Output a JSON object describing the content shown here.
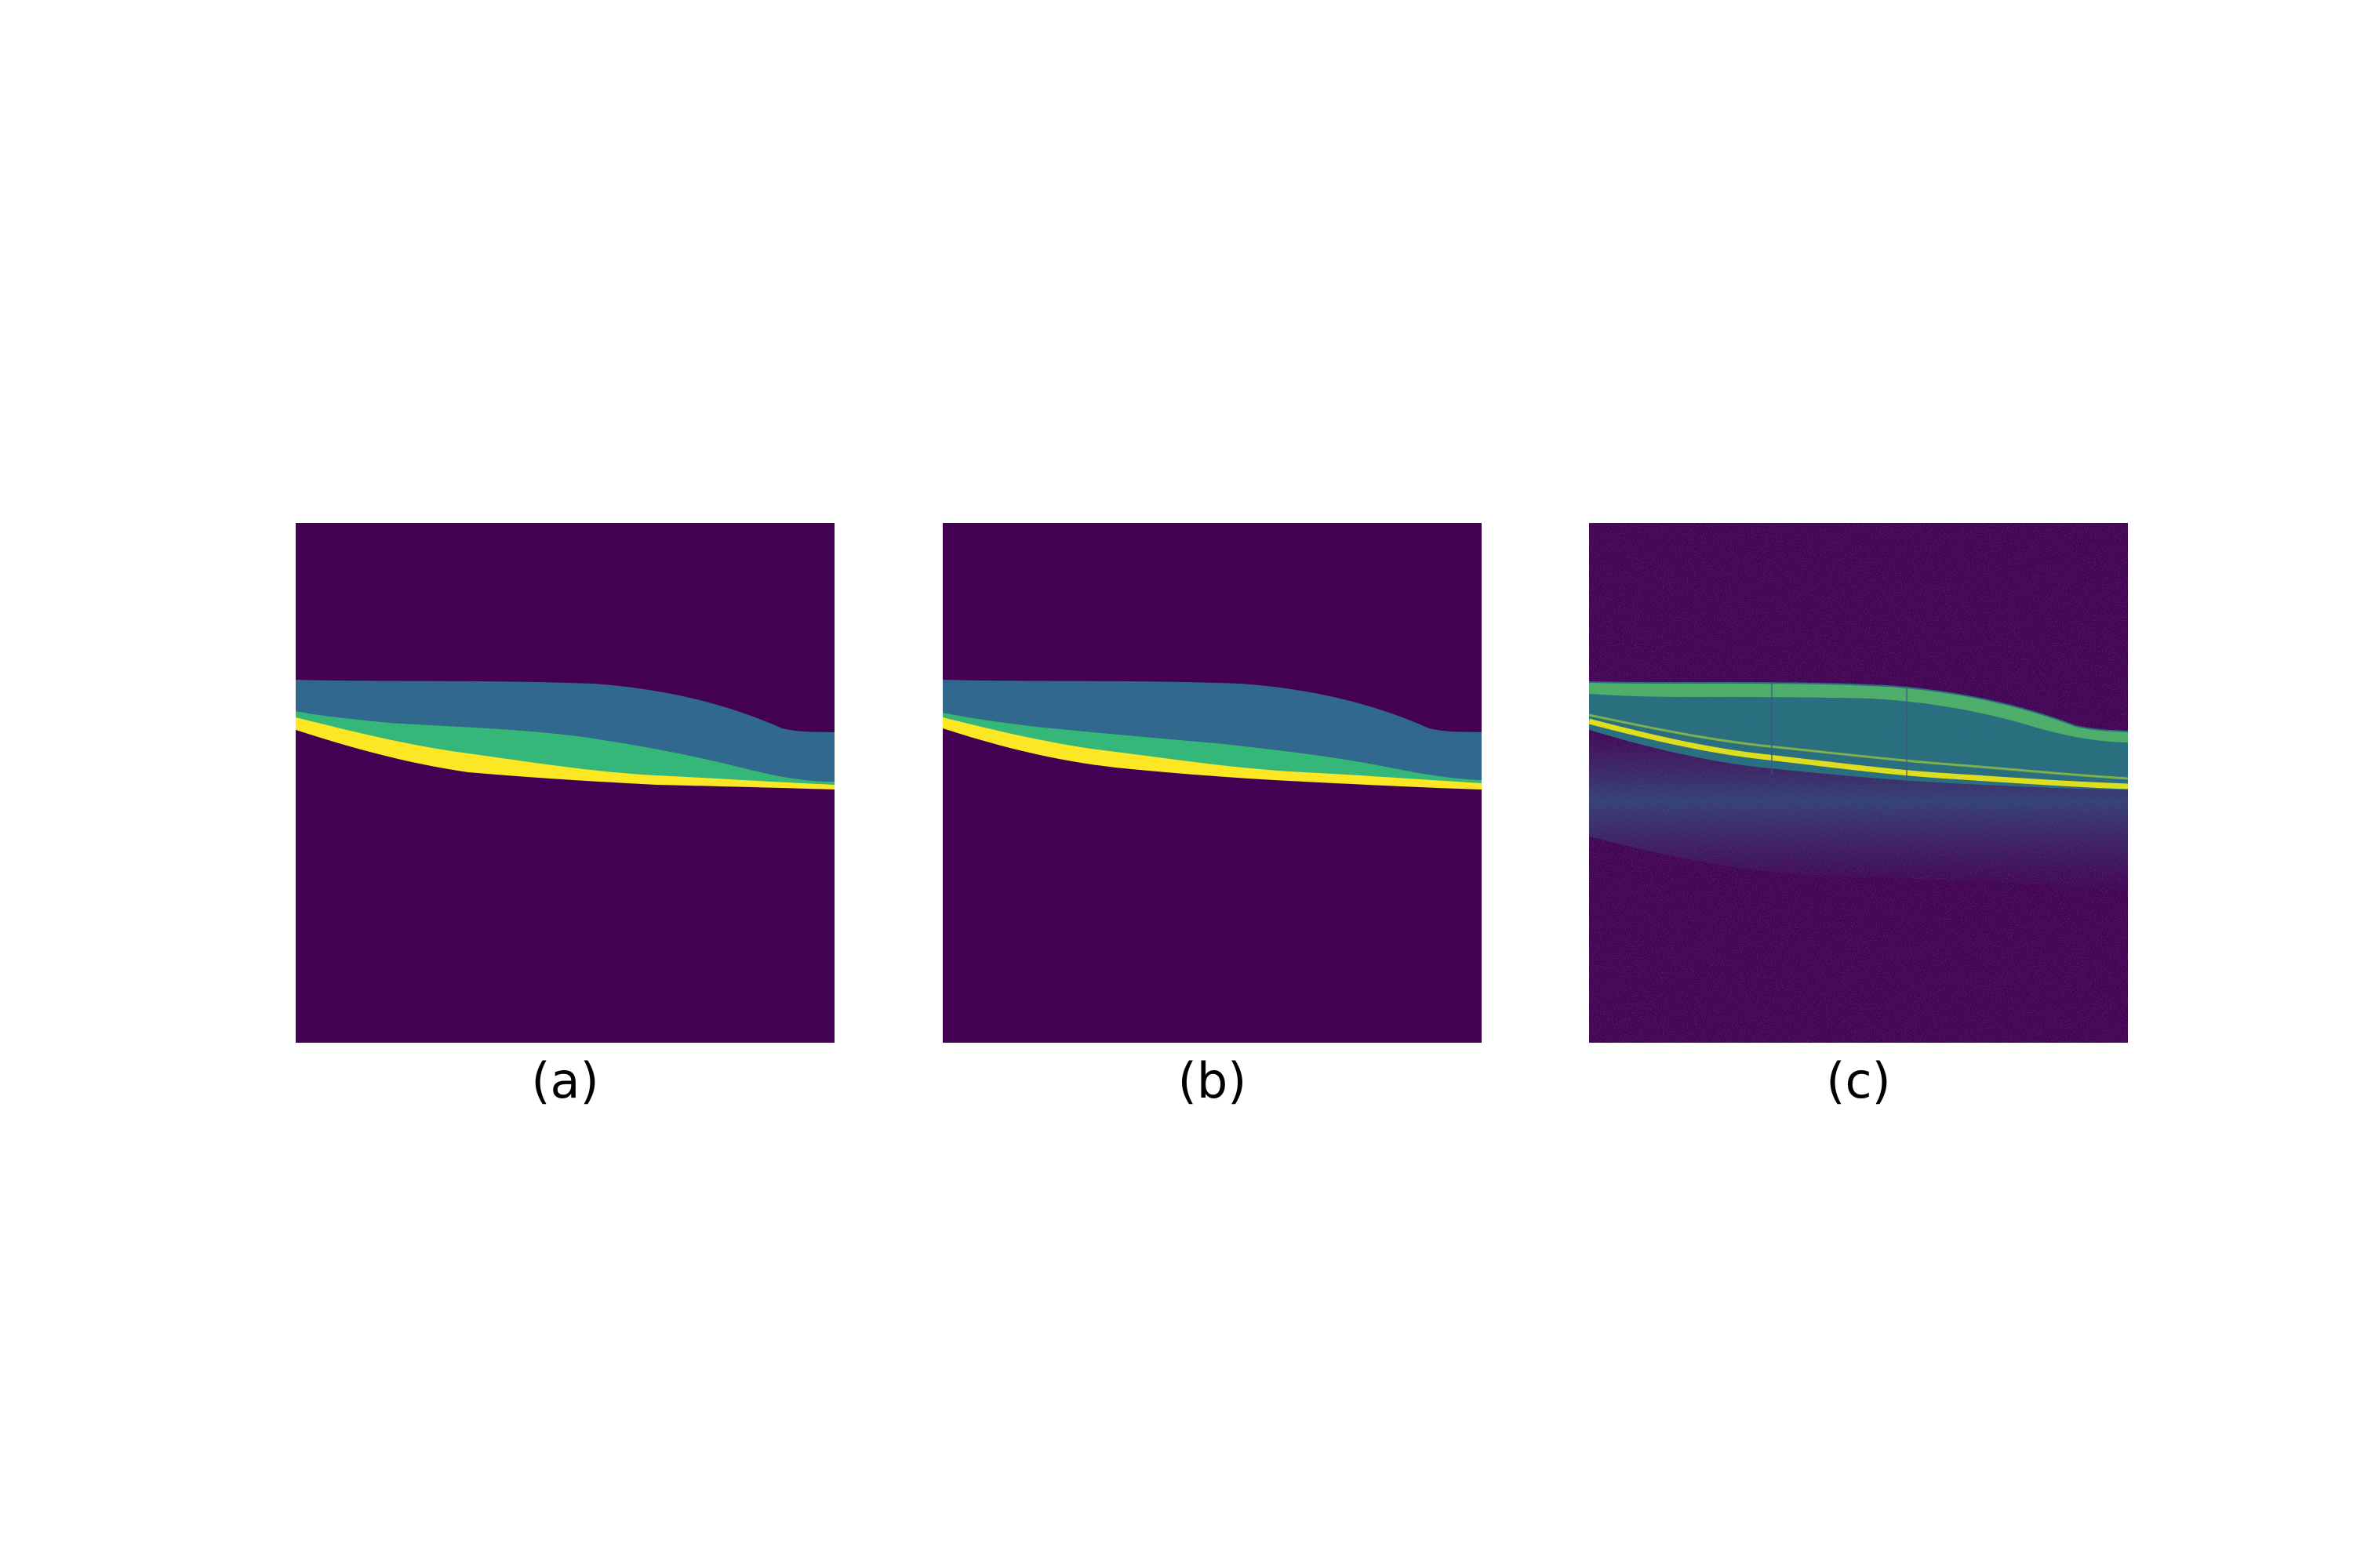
{
  "panels": [
    {
      "id": "a",
      "caption": "(a)",
      "type": "segmentation-map"
    },
    {
      "id": "b",
      "caption": "(b)",
      "type": "segmentation-map"
    },
    {
      "id": "c",
      "caption": "(c)",
      "type": "oct-b-scan"
    }
  ],
  "colors": {
    "background": "#440154",
    "layer_top": "#31688e",
    "layer_middle": "#35b779",
    "layer_bottom": "#fde725",
    "oct_bright": "#b5de2b",
    "oct_mid": "#21918c"
  }
}
